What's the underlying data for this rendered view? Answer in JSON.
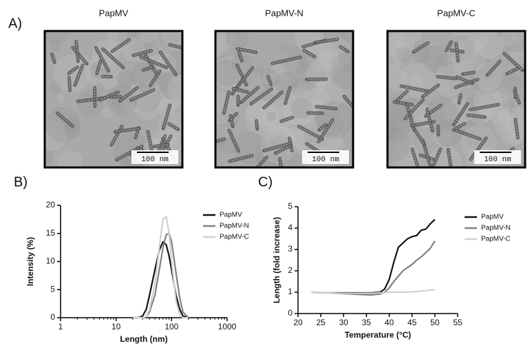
{
  "figure": {
    "label": "A)",
    "images": [
      {
        "title": "PapMV",
        "scale_bar": "100 nm"
      },
      {
        "title": "PapMV-N",
        "scale_bar": "100 nm"
      },
      {
        "title": "PapMV-C",
        "scale_bar": "100 nm"
      }
    ]
  },
  "chart_data": [
    {
      "type": "line",
      "label": "B)",
      "x_label": "Length (nm)",
      "y_label": "Intensity (%)",
      "log_x": true,
      "xlim": [
        1,
        1000
      ],
      "xticks": [
        1,
        10,
        100,
        1000
      ],
      "ylim": [
        0,
        20
      ],
      "yticks": [
        0,
        5,
        10,
        15,
        20
      ],
      "x": [
        20,
        25,
        30,
        35,
        40,
        50,
        60,
        70,
        80,
        90,
        100,
        120,
        140,
        160,
        200
      ],
      "series": [
        {
          "name": "PapMV",
          "color": "#111111",
          "values": [
            0,
            0,
            0.3,
            1.5,
            4,
            8.5,
            12,
            13.5,
            13,
            11,
            8.5,
            4,
            1.5,
            0.3,
            0
          ]
        },
        {
          "name": "PapMV-N",
          "color": "#808080",
          "values": [
            0,
            0,
            0,
            0.2,
            1,
            4,
            8.5,
            12.5,
            14.8,
            15,
            13.5,
            8,
            3.5,
            1,
            0
          ]
        },
        {
          "name": "PapMV-C",
          "color": "#d0d0d0",
          "values": [
            0,
            0,
            0,
            0.2,
            1.5,
            6,
            12.5,
            17.5,
            18,
            15,
            10,
            3,
            0.5,
            0,
            0
          ]
        }
      ]
    },
    {
      "type": "line",
      "label": "C)",
      "x_label": "Temperature (°C)",
      "y_label": "Length (fold increase)",
      "log_x": false,
      "xlim": [
        20,
        55
      ],
      "xticks": [
        20,
        25,
        30,
        35,
        40,
        45,
        50,
        55
      ],
      "ylim": [
        0,
        5
      ],
      "yticks": [
        0,
        1,
        2,
        3,
        4,
        5
      ],
      "x": [
        23,
        25,
        27,
        30,
        33,
        36,
        38,
        39,
        40,
        41,
        42,
        43,
        44,
        45,
        46,
        47,
        48,
        49,
        50
      ],
      "series": [
        {
          "name": "PapMV",
          "color": "#111111",
          "values": [
            1,
            0.97,
            0.97,
            0.97,
            0.97,
            0.97,
            1,
            1.15,
            1.6,
            2.4,
            3.1,
            3.3,
            3.5,
            3.6,
            3.65,
            3.9,
            3.95,
            4.2,
            4.4
          ]
        },
        {
          "name": "PapMV-N",
          "color": "#808080",
          "values": [
            1,
            0.97,
            0.96,
            0.93,
            0.9,
            0.87,
            0.92,
            1.0,
            1.2,
            1.5,
            1.75,
            2.0,
            2.15,
            2.3,
            2.5,
            2.65,
            2.85,
            3.05,
            3.4
          ]
        },
        {
          "name": "PapMV-C",
          "color": "#d0d0d0",
          "values": [
            1,
            0.97,
            0.96,
            0.95,
            0.95,
            0.95,
            0.97,
            0.98,
            1.0,
            1.0,
            1.0,
            1.0,
            1.0,
            1.02,
            1.03,
            1.05,
            1.07,
            1.1,
            1.12
          ]
        }
      ]
    }
  ]
}
